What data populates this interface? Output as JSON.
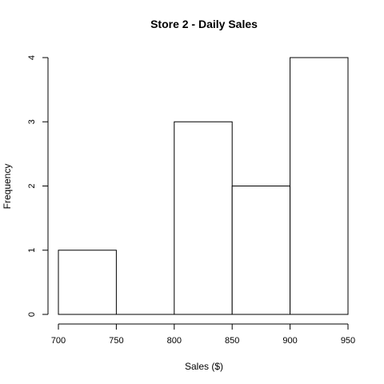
{
  "chart_data": {
    "type": "bar",
    "title": "Store 2 - Daily Sales",
    "xlabel": "Sales ($)",
    "ylabel": "Frequency",
    "bins": [
      {
        "start": 700,
        "end": 750,
        "count": 1
      },
      {
        "start": 750,
        "end": 800,
        "count": 0
      },
      {
        "start": 800,
        "end": 850,
        "count": 3
      },
      {
        "start": 850,
        "end": 900,
        "count": 2
      },
      {
        "start": 900,
        "end": 950,
        "count": 4
      }
    ],
    "x_ticks": [
      700,
      750,
      800,
      850,
      900,
      950
    ],
    "y_ticks": [
      0,
      1,
      2,
      3,
      4
    ],
    "xlim": [
      700,
      950
    ],
    "ylim": [
      0,
      4
    ],
    "grid": false,
    "colors": {
      "bar_fill": "#ffffff",
      "bar_stroke": "#000000"
    }
  }
}
